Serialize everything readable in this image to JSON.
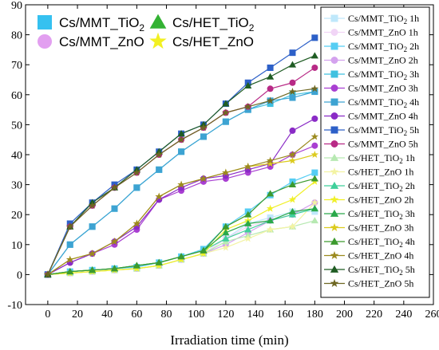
{
  "chart_data": {
    "type": "line",
    "xlabel": "Irradiation time (min)",
    "ylabel": "",
    "xlim": [
      -15,
      260
    ],
    "ylim": [
      -10,
      90
    ],
    "x_ticks": [
      0,
      20,
      40,
      60,
      80,
      100,
      120,
      140,
      160,
      180,
      200,
      220,
      240,
      260
    ],
    "y_ticks": [
      -10,
      0,
      10,
      20,
      30,
      40,
      50,
      60,
      70,
      80,
      90
    ],
    "grid": false,
    "x": [
      0,
      15,
      30,
      45,
      60,
      75,
      90,
      105,
      120,
      135,
      150,
      165,
      180
    ],
    "big_legend": [
      {
        "label": "Cs/MMT_TiO",
        "sub": "2",
        "marker": "square",
        "color": "#35c1f0"
      },
      {
        "label": "Cs/HET_TiO",
        "sub": "2",
        "marker": "triangle",
        "color": "#33b233"
      },
      {
        "label": "Cs/MMT_ZnO",
        "sub": "",
        "marker": "circle",
        "color": "#e29ff0"
      },
      {
        "label": "Cs/HET_ZnO",
        "sub": "",
        "marker": "star",
        "color": "#f2f022"
      }
    ],
    "series": [
      {
        "name": "Cs/MMT_TiO",
        "sub": "2",
        "suffix": " 1h",
        "marker": "square",
        "color": "#bfe8fb",
        "values": [
          0,
          0.5,
          1,
          1.5,
          2,
          3,
          5,
          7,
          12,
          17,
          19,
          21,
          21
        ]
      },
      {
        "name": "Cs/MMT_ZnO",
        "sub": "",
        "suffix": " 1h",
        "marker": "circle",
        "color": "#f1d5f6",
        "values": [
          0,
          0.5,
          1,
          1.5,
          2,
          3,
          5,
          7,
          12,
          16,
          18,
          20,
          24
        ]
      },
      {
        "name": "Cs/MMT_TiO",
        "sub": "2",
        "suffix": " 2h",
        "marker": "square",
        "color": "#55cdf3",
        "values": [
          0,
          1,
          1.5,
          2,
          2.5,
          4,
          6,
          8.5,
          16,
          21,
          26.5,
          31,
          34
        ]
      },
      {
        "name": "Cs/MMT_ZnO",
        "sub": "",
        "suffix": " 2h",
        "marker": "circle",
        "color": "#d4a2ee",
        "values": [
          0,
          0.5,
          1,
          1.5,
          2,
          3,
          5,
          7,
          10,
          14,
          18,
          20,
          24
        ]
      },
      {
        "name": "Cs/MMT_TiO",
        "sub": "2",
        "suffix": " 3h",
        "marker": "square",
        "color": "#3fc1e0",
        "values": [
          0,
          10,
          16,
          22,
          29,
          35,
          41,
          46,
          51,
          55,
          57,
          60,
          61
        ]
      },
      {
        "name": "Cs/MMT_ZnO",
        "sub": "",
        "suffix": " 3h",
        "marker": "circle",
        "color": "#a93fd2",
        "values": [
          0,
          4,
          7,
          10,
          15,
          25,
          28,
          31,
          32,
          34,
          36,
          40,
          43
        ]
      },
      {
        "name": "Cs/MMT_TiO",
        "sub": "2",
        "suffix": " 4h",
        "marker": "square",
        "color": "#3da3d2",
        "values": [
          0,
          10,
          16,
          22,
          29,
          35,
          41,
          46,
          51,
          55,
          58,
          59,
          61
        ]
      },
      {
        "name": "Cs/MMT_ZnO",
        "sub": "",
        "suffix": " 4h",
        "marker": "circle",
        "color": "#8a2bc6",
        "values": [
          0,
          4,
          7,
          11,
          16,
          25,
          29,
          32,
          33,
          35,
          37,
          48,
          52
        ]
      },
      {
        "name": "Cs/MMT_TiO",
        "sub": "2",
        "suffix": " 5h",
        "marker": "square",
        "color": "#2d60c8",
        "values": [
          0,
          17,
          24,
          30,
          35,
          41,
          47,
          50,
          57,
          64,
          69,
          74,
          79
        ]
      },
      {
        "name": "Cs/MMT_ZnO",
        "sub": "",
        "suffix": " 5h",
        "marker": "circle",
        "color": "#b82a86",
        "values": [
          0,
          16,
          23,
          29,
          34,
          40,
          45,
          49,
          54,
          56,
          62,
          64,
          69
        ]
      },
      {
        "name": "Cs/HET_TiO",
        "sub": "2",
        "suffix": " 1h",
        "marker": "triangle",
        "color": "#b7e9b2",
        "values": [
          0,
          0.5,
          1,
          1.5,
          2,
          3,
          5,
          7,
          11,
          13,
          15,
          16,
          18
        ]
      },
      {
        "name": "Cs/HET_ZnO",
        "sub": "",
        "suffix": " 1h",
        "marker": "star",
        "color": "#f3f3a3",
        "values": [
          0,
          0.5,
          1,
          1.5,
          2,
          3,
          5,
          7,
          9,
          12,
          15,
          16,
          24
        ]
      },
      {
        "name": "Cs/HET_TiO",
        "sub": "2",
        "suffix": " 2h",
        "marker": "triangle",
        "color": "#3fcf9a",
        "values": [
          0,
          1,
          1.5,
          2,
          3,
          4,
          6,
          8,
          12,
          15,
          18,
          20,
          22
        ]
      },
      {
        "name": "Cs/HET_ZnO",
        "sub": "",
        "suffix": " 2h",
        "marker": "star",
        "color": "#f0f028",
        "values": [
          0,
          0.5,
          1,
          1.5,
          2,
          3,
          5,
          7,
          15,
          18,
          22,
          25,
          31
        ]
      },
      {
        "name": "Cs/HET_TiO",
        "sub": "2",
        "suffix": " 3h",
        "marker": "triangle",
        "color": "#2aa84a",
        "values": [
          0,
          1,
          1.5,
          2,
          3,
          4,
          6,
          8,
          14,
          17,
          18,
          21,
          22
        ]
      },
      {
        "name": "Cs/HET_ZnO",
        "sub": "",
        "suffix": " 3h",
        "marker": "star",
        "color": "#dccb1e",
        "values": [
          0,
          5,
          7,
          11,
          17,
          26,
          30,
          32,
          34,
          36,
          37,
          38,
          40
        ]
      },
      {
        "name": "Cs/HET_TiO",
        "sub": "2",
        "suffix": " 4h",
        "marker": "triangle",
        "color": "#3c9a2e",
        "values": [
          0,
          1,
          1.5,
          2,
          3,
          4,
          6,
          8,
          16,
          20,
          27,
          30,
          32
        ]
      },
      {
        "name": "Cs/HET_ZnO",
        "sub": "",
        "suffix": " 4h",
        "marker": "star",
        "color": "#9b8a1e",
        "values": [
          0,
          5,
          7,
          11,
          17,
          26,
          30,
          32,
          34,
          36,
          38,
          40,
          46
        ]
      },
      {
        "name": "Cs/HET_TiO",
        "sub": "2",
        "suffix": " 5h",
        "marker": "triangle",
        "color": "#1f5c23",
        "values": [
          0,
          16,
          24,
          29,
          35,
          41,
          47,
          50,
          57,
          63,
          66,
          70,
          73
        ]
      },
      {
        "name": "Cs/HET_ZnO",
        "sub": "",
        "suffix": " 5h",
        "marker": "star",
        "color": "#6e6722",
        "values": [
          0,
          16,
          23,
          29,
          34,
          40,
          45,
          49,
          54,
          56,
          58,
          61,
          62
        ]
      }
    ]
  }
}
